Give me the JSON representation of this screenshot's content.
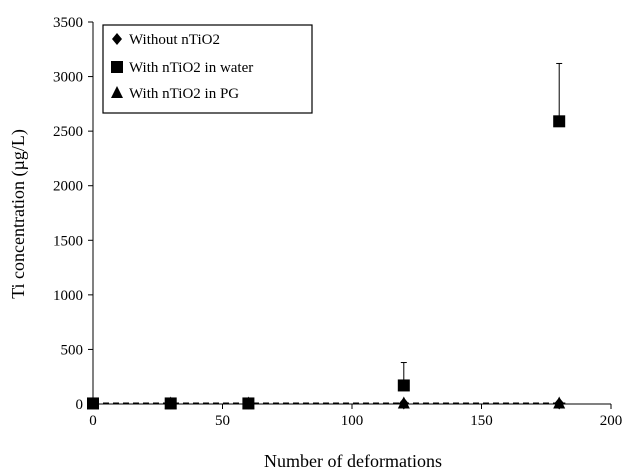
{
  "chart_data": {
    "type": "scatter",
    "title": "",
    "xlabel": "Number of deformations",
    "ylabel": "Ti concentration (µg/L)",
    "xlim": [
      0,
      200
    ],
    "ylim": [
      0,
      3500
    ],
    "x_ticks": [
      "0",
      "50",
      "100",
      "150",
      "200"
    ],
    "y_ticks": [
      "0",
      "500",
      "1000",
      "1500",
      "2000",
      "2500",
      "3000",
      "3500"
    ],
    "x_tick_values": [
      0,
      50,
      100,
      150,
      200
    ],
    "y_tick_values": [
      0,
      500,
      1000,
      1500,
      2000,
      2500,
      3000,
      3500
    ],
    "grid": false,
    "legend_position": "top-left",
    "series": [
      {
        "name": "Without nTiO2",
        "marker": "diamond",
        "x": [
          0,
          30,
          60,
          120,
          180
        ],
        "y": [
          5,
          5,
          5,
          5,
          5
        ],
        "error_upper": [
          0,
          0,
          0,
          0,
          0
        ],
        "dashed_line": true
      },
      {
        "name": "With nTiO2 in water",
        "marker": "square",
        "x": [
          0,
          30,
          60,
          120,
          180
        ],
        "y": [
          5,
          5,
          5,
          170,
          2590
        ],
        "error_upper": [
          0,
          0,
          0,
          210,
          530
        ],
        "dashed_line": false
      },
      {
        "name": "With nTiO2 in PG",
        "marker": "triangle",
        "x": [
          0,
          30,
          60,
          120,
          180
        ],
        "y": [
          5,
          5,
          5,
          5,
          5
        ],
        "error_upper": [
          0,
          0,
          0,
          0,
          0
        ],
        "dashed_line": true
      }
    ],
    "colors": {
      "marker": "#000000",
      "axis": "#000000",
      "dashed_line": "#000000"
    }
  }
}
